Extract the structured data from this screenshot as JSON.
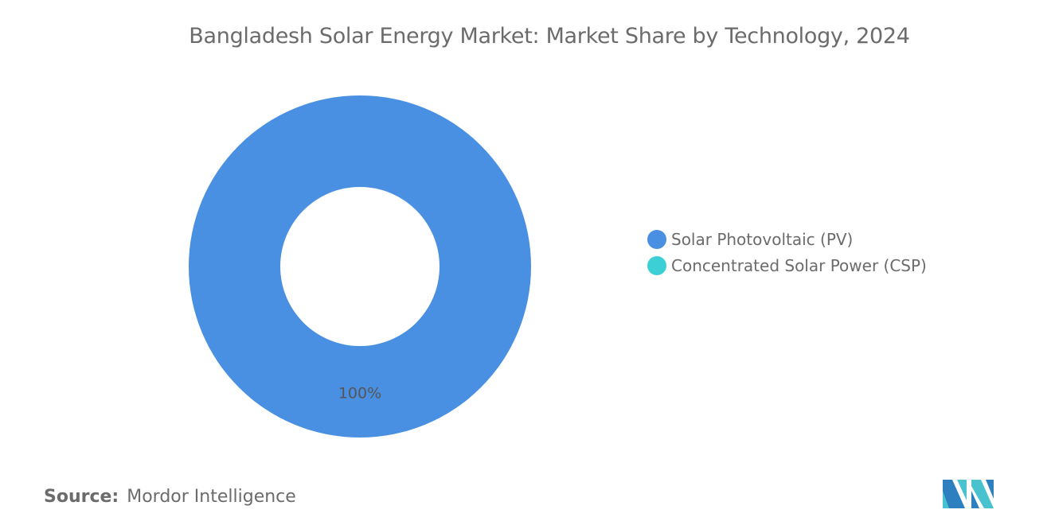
{
  "chart_data": {
    "type": "pie",
    "variant": "donut",
    "title": "Bangladesh Solar Energy Market: Market Share by Technology, 2024",
    "categories": [
      "Solar Photovoltaic (PV)",
      "Concentrated Solar Power (CSP)"
    ],
    "values": [
      100,
      0
    ],
    "data_labels": [
      "100%",
      ""
    ],
    "colors": [
      "#4a90e2",
      "#3ccfd6"
    ],
    "legend_position": "right"
  },
  "footer": {
    "source_label": "Source:",
    "source_value": "Mordor Intelligence",
    "logo_text": "Mordor Intelligence"
  }
}
